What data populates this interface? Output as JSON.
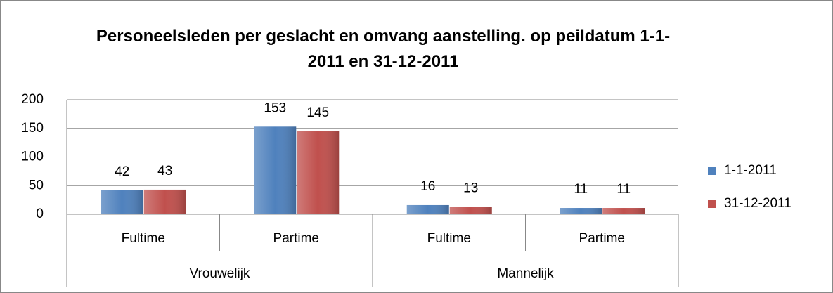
{
  "chart_data": {
    "type": "bar",
    "title": "Personeelsleden per geslacht en omvang aanstelling. op peildatum 1-1-2011 en 31-12-2011",
    "categories": [
      "Fultime",
      "Partime",
      "Fultime",
      "Partime"
    ],
    "groups": [
      "Vrouwelijk",
      "Mannelijk"
    ],
    "series": [
      {
        "name": "1-1-2011",
        "color": "#4f81bd",
        "values": [
          42,
          153,
          16,
          11
        ]
      },
      {
        "name": "31-12-2011",
        "color": "#c0504d",
        "values": [
          43,
          145,
          13,
          11
        ]
      }
    ],
    "ylim": [
      0,
      200
    ],
    "yticks": [
      0,
      50,
      100,
      150,
      200
    ],
    "grid": true,
    "legend": "right"
  }
}
